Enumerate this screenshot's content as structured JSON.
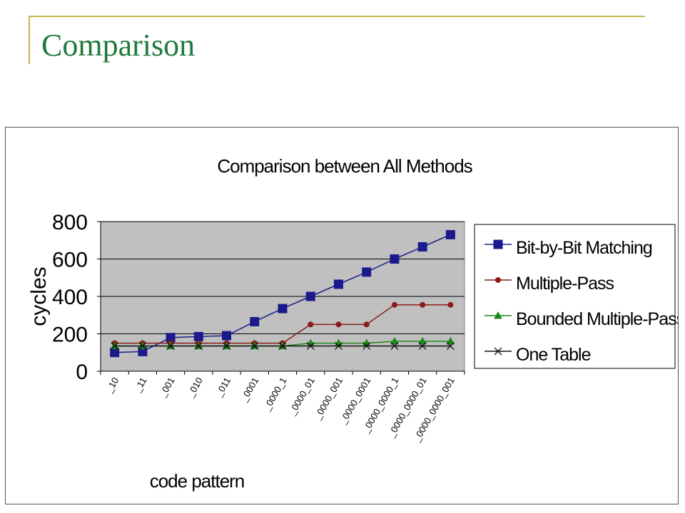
{
  "slide": {
    "title": "Comparison"
  },
  "chart_data": {
    "type": "line",
    "title": "Comparison between All Methods",
    "xlabel": "code pattern",
    "ylabel": "cycles",
    "ylim": [
      0,
      800
    ],
    "yticks": [
      0,
      200,
      400,
      600,
      800
    ],
    "grid": true,
    "legend_position": "right",
    "categories": [
      "_10",
      "_11",
      "_001",
      "_010",
      "_011",
      "_0001",
      "_0000_1",
      "_0000_01",
      "_0000_001",
      "_0000_0001",
      "_0000_0000_1",
      "_0000_0000_01",
      "_0000_0000_001"
    ],
    "series": [
      {
        "name": "Bit-by-Bit Matching",
        "color": "#1a1a8c",
        "marker": "square",
        "values": [
          100,
          105,
          180,
          185,
          190,
          265,
          335,
          400,
          465,
          530,
          600,
          665,
          730
        ]
      },
      {
        "name": "Multiple-Pass",
        "color": "#8b1a1a",
        "marker": "circle",
        "values": [
          150,
          150,
          150,
          150,
          150,
          150,
          150,
          250,
          250,
          250,
          355,
          355,
          355
        ]
      },
      {
        "name": "Bounded Multiple-Pass",
        "color": "#1a8a1a",
        "marker": "triangle",
        "values": [
          135,
          135,
          135,
          135,
          135,
          135,
          135,
          150,
          150,
          150,
          160,
          160,
          160
        ]
      },
      {
        "name": "One Table",
        "color": "#111111",
        "marker": "x",
        "values": [
          135,
          135,
          135,
          135,
          135,
          135,
          135,
          135,
          135,
          135,
          135,
          135,
          135
        ]
      }
    ]
  }
}
